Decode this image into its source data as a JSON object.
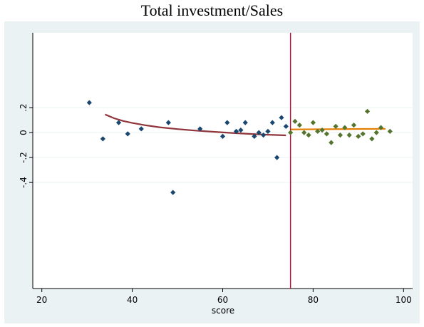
{
  "chart_data": {
    "type": "scatter",
    "title": "Total investment/Sales",
    "xlabel": "score",
    "ylabel": "",
    "xlim": [
      18,
      102
    ],
    "ylim": [
      -1.25,
      0.8
    ],
    "x_ticks": [
      20,
      40,
      60,
      80,
      100
    ],
    "y_ticks": [
      0.2,
      0,
      -0.2,
      -0.4
    ],
    "y_tick_labels": [
      ".2",
      "0",
      "-.2",
      "-.4"
    ],
    "grid": true,
    "cutoff": 75,
    "colors": {
      "background": "#eaf2f3",
      "plot_area": "#ffffff",
      "grid": "#eaf2f3",
      "left_points": "#1a476f",
      "right_points": "#55752f",
      "left_fit": "#90353b",
      "right_fit": "#e37e00",
      "cutoff_line": "#c10534"
    },
    "series": [
      {
        "points": [
          [
            30.5,
            0.24
          ],
          [
            33.5,
            -0.05
          ],
          [
            37,
            0.08
          ],
          [
            39,
            -0.01
          ],
          [
            42,
            0.03
          ],
          [
            48,
            0.08
          ],
          [
            49,
            -0.48
          ],
          [
            55,
            0.03
          ],
          [
            60,
            -0.03
          ],
          [
            61,
            0.08
          ],
          [
            63,
            0.01
          ],
          [
            64,
            0.02
          ],
          [
            65,
            0.08
          ],
          [
            67,
            -0.03
          ],
          [
            68,
            0.0
          ],
          [
            69,
            -0.02
          ],
          [
            70,
            0.01
          ],
          [
            71,
            0.08
          ],
          [
            72,
            -0.2
          ],
          [
            73,
            0.12
          ],
          [
            74,
            0.05
          ]
        ]
      },
      {
        "points": [
          [
            75,
            0.0
          ],
          [
            76,
            0.09
          ],
          [
            77,
            0.06
          ],
          [
            78,
            0.0
          ],
          [
            79,
            -0.02
          ],
          [
            80,
            0.08
          ],
          [
            81,
            0.01
          ],
          [
            82,
            0.02
          ],
          [
            83,
            -0.01
          ],
          [
            84,
            -0.08
          ],
          [
            85,
            0.05
          ],
          [
            86,
            -0.02
          ],
          [
            87,
            0.04
          ],
          [
            88,
            -0.02
          ],
          [
            89,
            0.06
          ],
          [
            90,
            -0.03
          ],
          [
            91,
            -0.01
          ],
          [
            92,
            0.17
          ],
          [
            93,
            -0.05
          ],
          [
            94,
            0.0
          ],
          [
            95,
            0.04
          ],
          [
            97,
            0.01
          ]
        ]
      }
    ],
    "fit_lines": [
      {
        "points": [
          [
            34,
            0.145
          ],
          [
            36,
            0.115
          ],
          [
            38,
            0.093
          ],
          [
            40,
            0.077
          ],
          [
            43,
            0.058
          ],
          [
            46,
            0.043
          ],
          [
            50,
            0.028
          ],
          [
            54,
            0.016
          ],
          [
            58,
            0.006
          ],
          [
            62,
            -0.003
          ],
          [
            66,
            -0.011
          ],
          [
            70,
            -0.017
          ],
          [
            74,
            -0.022
          ]
        ]
      },
      {
        "points": [
          [
            75,
            0.025
          ],
          [
            96,
            0.03
          ]
        ]
      }
    ]
  }
}
